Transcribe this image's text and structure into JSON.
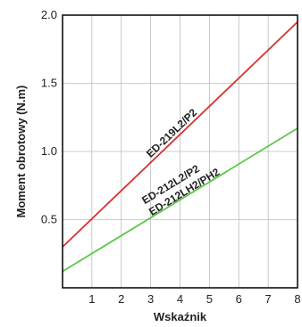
{
  "chart_data": {
    "type": "line",
    "title": "",
    "xlabel": "Wskaźnik",
    "ylabel": "Moment obrotowy (N.m)",
    "xlim": [
      0,
      8
    ],
    "ylim": [
      0,
      2.0
    ],
    "xticks": [
      "1",
      "2",
      "3",
      "4",
      "5",
      "6",
      "7",
      "8"
    ],
    "yticks": [
      "0.5",
      "1.0",
      "1.5",
      "2.0"
    ],
    "grid": true,
    "legend": "inline labels",
    "series": [
      {
        "name": "ED-219L2/P2",
        "color": "#d9302c",
        "x": [
          0,
          8
        ],
        "y": [
          0.3,
          1.95
        ]
      },
      {
        "name": "ED-212L2/P2\nED-212LH2/PH2",
        "lines": [
          "ED-212L2/P2",
          "ED-212LH2/PH2"
        ],
        "color": "#5cc64a",
        "x": [
          0,
          8
        ],
        "y": [
          0.12,
          1.17
        ]
      }
    ]
  }
}
